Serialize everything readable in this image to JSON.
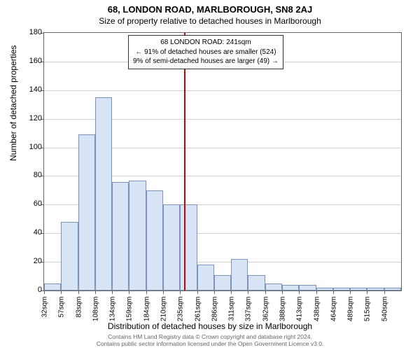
{
  "title_main": "68, LONDON ROAD, MARLBOROUGH, SN8 2AJ",
  "title_sub": "Size of property relative to detached houses in Marlborough",
  "ylabel": "Number of detached properties",
  "xlabel": "Distribution of detached houses by size in Marlborough",
  "footer1": "Contains HM Land Registry data © Crown copyright and database right 2024.",
  "footer2": "Contains public sector information licensed under the Open Government Licence v3.0.",
  "annotation": {
    "line1": "68 LONDON ROAD: 241sqm",
    "line2": "← 91% of detached houses are smaller (524)",
    "line3": "9% of semi-detached houses are larger (49) →"
  },
  "chart": {
    "type": "histogram",
    "ylim": [
      0,
      180
    ],
    "ytick_step": 20,
    "xtick_labels": [
      "32sqm",
      "57sqm",
      "83sqm",
      "108sqm",
      "134sqm",
      "159sqm",
      "184sqm",
      "210sqm",
      "235sqm",
      "261sqm",
      "286sqm",
      "311sqm",
      "337sqm",
      "362sqm",
      "388sqm",
      "413sqm",
      "438sqm",
      "464sqm",
      "489sqm",
      "515sqm",
      "540sqm"
    ],
    "bar_values": [
      5,
      48,
      109,
      135,
      76,
      77,
      70,
      60,
      60,
      18,
      11,
      22,
      11,
      5,
      4,
      4,
      2,
      2,
      2,
      2,
      2
    ],
    "bar_color": "#d8e4f5",
    "bar_border": "#7a93bb",
    "grid_color": "#d0d0d0",
    "axis_color": "#666666",
    "ref_line_x_index": 8.25,
    "ref_line_color": "#cc0000",
    "background_color": "#ffffff",
    "title_fontsize": 13,
    "subtitle_fontsize": 12,
    "label_fontsize": 12,
    "tick_fontsize": 11
  }
}
